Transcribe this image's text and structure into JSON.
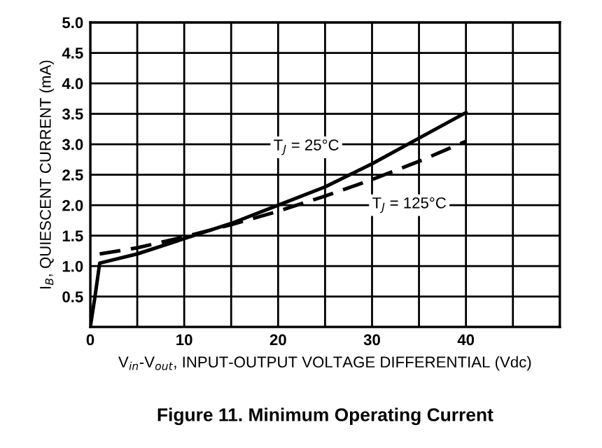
{
  "chart_data": {
    "type": "line",
    "title": "Figure 11. Minimum Operating Current",
    "xlabel": "V$_{in}$-V$_{out}$, INPUT-OUTPUT VOLTAGE DIFFERENTIAL (Vdc)",
    "ylabel": "I$_{B}$, QUIESCENT CURRENT (mA)",
    "series": [
      {
        "name": "T$_{J}$ = 25°C",
        "color": "#000000",
        "line_style": "solid",
        "x": [
          0,
          0.5,
          1,
          5,
          10,
          15,
          20,
          25,
          30,
          35,
          40
        ],
        "values": [
          0,
          0.5,
          1.05,
          1.2,
          1.45,
          1.7,
          2.0,
          2.3,
          2.68,
          3.1,
          3.52
        ]
      },
      {
        "name": "T$_{J}$ = 125°C",
        "color": "#000000",
        "line_style": "dashed",
        "x": [
          1,
          5,
          10,
          15,
          20,
          25,
          30,
          35,
          40
        ],
        "values": [
          1.2,
          1.3,
          1.48,
          1.68,
          1.9,
          2.15,
          2.42,
          2.72,
          3.05
        ]
      }
    ],
    "xlim": [
      0,
      50
    ],
    "ylim": [
      0,
      5
    ],
    "xticks": [
      0,
      {
        "value": 5,
        "label": null
      },
      10,
      {
        "value": 15,
        "label": null
      },
      20,
      {
        "value": 25,
        "label": null
      },
      30,
      {
        "value": 35,
        "label": null
      },
      40,
      {
        "value": 45,
        "label": null
      },
      {
        "value": 50,
        "label": null
      }
    ],
    "yticks": [
      {
        "value": 0,
        "label": null
      },
      0.5,
      {
        "value": 1,
        "label": "1.0"
      },
      1.5,
      {
        "value": 2,
        "label": "2.0"
      },
      2.5,
      {
        "value": 3,
        "label": "3.0"
      },
      3.5,
      {
        "value": 4,
        "label": "4.0"
      },
      4.5,
      {
        "value": 5,
        "label": "5.0"
      }
    ],
    "grid": true,
    "marker": "none",
    "legend": false
  }
}
